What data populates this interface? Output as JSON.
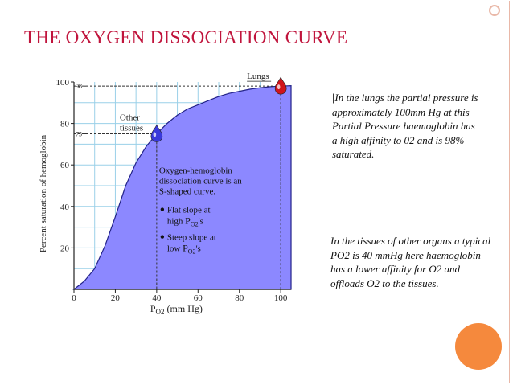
{
  "slide": {
    "title": "THE OXYGEN DISSOCIATION CURVE",
    "note_lungs": "In the lungs the partial pressure is approximately 100mm Hg at this Partial Pressure haemoglobin has a high affinity to 02 and is 98% saturated.",
    "note_tissues": "In the tissues of other organs a typical PO2 is 40 mmHg here haemoglobin has a lower affinity for O2 and offloads O2 to the tissues."
  },
  "colors": {
    "title": "#c0143c",
    "curve_fill": "#8c88ff",
    "grid": "#9ad0e8",
    "frame": "#e9b8a8",
    "accent_circle": "#f5893d",
    "lungs_drop": "#d0141c",
    "tissue_drop": "#3a3adb"
  },
  "chart_data": {
    "type": "area",
    "ylabel": "Percent saturation of hemoglobin",
    "xlabel_prefix": "P",
    "xlabel_sub": "O2",
    "xlabel_suffix": " (mm Hg)",
    "xlim": [
      0,
      105
    ],
    "ylim": [
      0,
      100
    ],
    "x_ticks": [
      0,
      20,
      40,
      60,
      80,
      100
    ],
    "y_ticks": [
      20,
      40,
      60,
      80,
      100
    ],
    "grid": true,
    "series": [
      {
        "x": [
          0,
          5,
          10,
          15,
          20,
          25,
          30,
          35,
          40,
          45,
          50,
          55,
          60,
          65,
          70,
          75,
          80,
          85,
          90,
          95,
          100,
          105
        ],
        "values": [
          0,
          4,
          10,
          21,
          35,
          50,
          61,
          69,
          75,
          80,
          84,
          87,
          89,
          91,
          93,
          94.5,
          95.5,
          96.5,
          97.2,
          97.7,
          98,
          98.2
        ]
      }
    ],
    "reference_lines": [
      {
        "y": 98,
        "x_end": 100,
        "label": "98"
      },
      {
        "y": 75,
        "x_end": 40,
        "label": "75"
      }
    ],
    "markers": [
      {
        "name": "lungs",
        "x": 100,
        "y": 98,
        "label": "Lungs"
      },
      {
        "name": "tissues",
        "x": 40,
        "y": 75,
        "label_lines": [
          "Other",
          "tissues"
        ]
      }
    ],
    "annotation": {
      "lines": [
        "Oxygen-hemoglobin",
        "dissociation curve is an",
        "S-shaped curve."
      ],
      "bullets": [
        {
          "line1": "Flat slope at",
          "line2_text": "high",
          "line2_p": "P",
          "line2_sub": "O2",
          "line2_suffix": "'s"
        },
        {
          "line1": "Steep slope at",
          "line2_text": "low",
          "line2_p": "P",
          "line2_sub": "O2",
          "line2_suffix": "'s"
        }
      ]
    }
  }
}
